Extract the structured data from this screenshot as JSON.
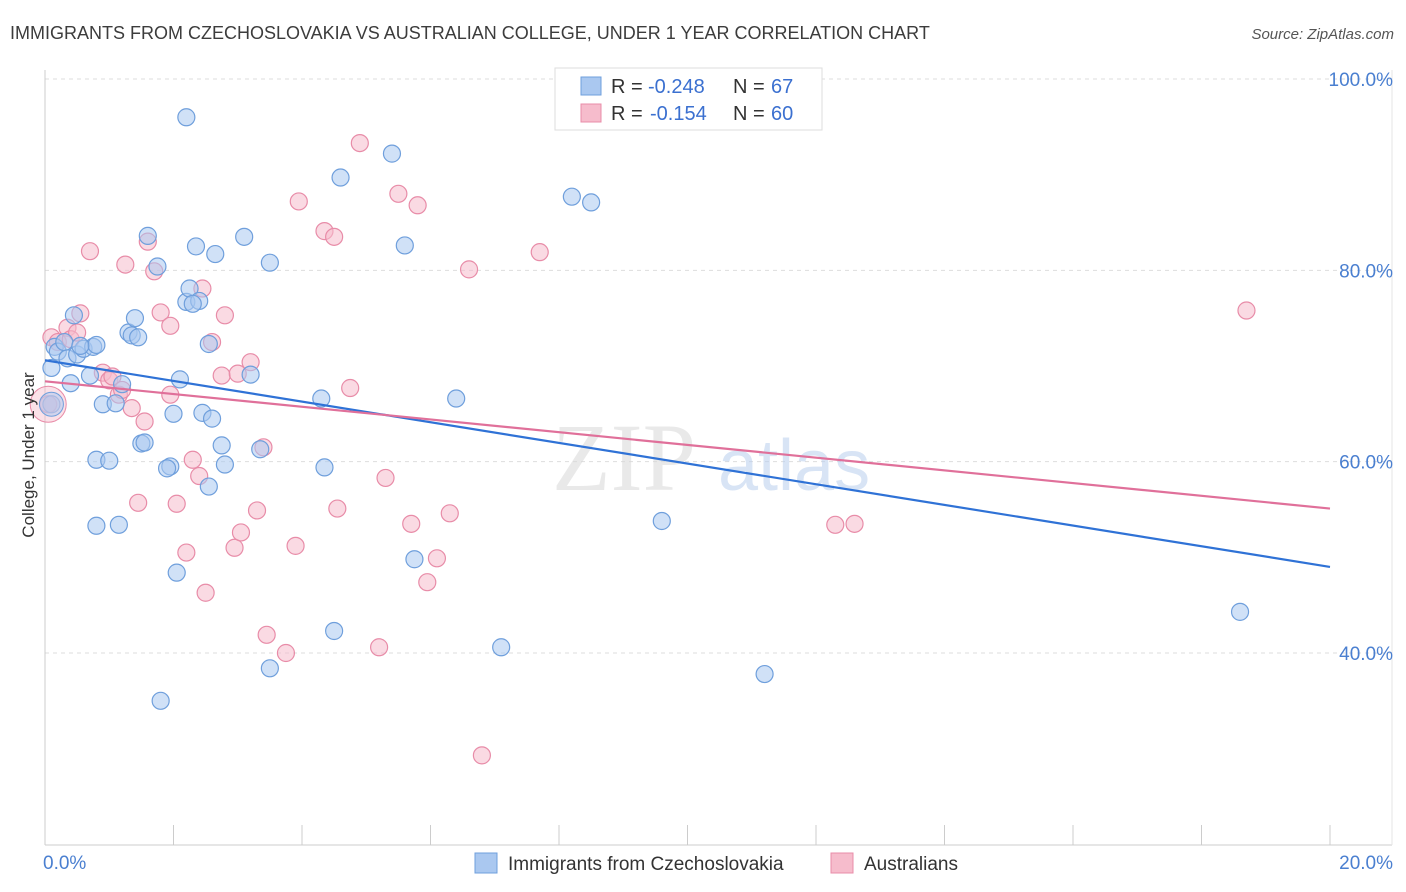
{
  "title": "IMMIGRANTS FROM CZECHOSLOVAKIA VS AUSTRALIAN COLLEGE, UNDER 1 YEAR CORRELATION CHART",
  "source": "Source: ZipAtlas.com",
  "watermark": {
    "zip": "ZIP",
    "atlas": "atlas"
  },
  "legend": {
    "r_label": "R =",
    "n_label": "N =",
    "rows": [
      {
        "r": "-0.248",
        "n": "67"
      },
      {
        "r": "-0.154",
        "n": "60"
      }
    ]
  },
  "colors": {
    "blue_fill": "#aac8f0",
    "blue_stroke": "#6f9fdc",
    "blue_line": "#2f72d6",
    "pink_fill": "#f6bccc",
    "pink_stroke": "#e88ca8",
    "pink_line": "#e0709a",
    "grid": "#dddddd",
    "tick_text": "#4a7fd0"
  },
  "chart_data": {
    "type": "scatter",
    "title": "IMMIGRANTS FROM CZECHOSLOVAKIA VS AUSTRALIAN COLLEGE, UNDER 1 YEAR CORRELATION CHART",
    "xlabel": "",
    "ylabel": "College, Under 1 year",
    "xlim": [
      0,
      20
    ],
    "ylim": [
      20,
      103
    ],
    "x_ticks": [
      "0.0%",
      "20.0%"
    ],
    "y_ticks": [
      {
        "value": 40,
        "label": "40.0%"
      },
      {
        "value": 60,
        "label": "60.0%"
      },
      {
        "value": 80,
        "label": "80.0%"
      },
      {
        "value": 100,
        "label": "100.0%"
      }
    ],
    "grid": true,
    "legend_position": "top-center",
    "series": [
      {
        "name": "Immigrants from Czechoslovakia",
        "color": "#aac8f0",
        "trend": {
          "x": [
            0,
            20
          ],
          "y": [
            70.6,
            49.0
          ]
        },
        "points": [
          [
            0.1,
            66.0
          ],
          [
            0.1,
            69.8
          ],
          [
            0.15,
            72.0
          ],
          [
            0.2,
            71.5
          ],
          [
            0.3,
            72.5
          ],
          [
            0.35,
            70.8
          ],
          [
            0.4,
            68.2
          ],
          [
            0.45,
            75.3
          ],
          [
            0.5,
            71.2
          ],
          [
            0.6,
            71.8
          ],
          [
            0.7,
            69.0
          ],
          [
            0.75,
            72.0
          ],
          [
            0.8,
            72.2
          ],
          [
            0.8,
            60.2
          ],
          [
            0.9,
            66.0
          ],
          [
            1.0,
            60.1
          ],
          [
            1.1,
            66.1
          ],
          [
            1.2,
            68.1
          ],
          [
            0.8,
            53.3
          ],
          [
            1.15,
            53.4
          ],
          [
            1.3,
            73.5
          ],
          [
            1.35,
            73.2
          ],
          [
            1.4,
            75.0
          ],
          [
            1.45,
            73.0
          ],
          [
            1.5,
            61.9
          ],
          [
            1.55,
            62.0
          ],
          [
            1.6,
            83.6
          ],
          [
            1.75,
            80.4
          ],
          [
            1.8,
            35.0
          ],
          [
            1.95,
            59.5
          ],
          [
            2.0,
            65.0
          ],
          [
            2.1,
            68.6
          ],
          [
            2.05,
            48.4
          ],
          [
            2.2,
            76.7
          ],
          [
            2.25,
            78.1
          ],
          [
            2.2,
            96.0
          ],
          [
            2.35,
            82.5
          ],
          [
            2.4,
            76.8
          ],
          [
            2.45,
            65.1
          ],
          [
            2.55,
            72.3
          ],
          [
            2.55,
            57.4
          ],
          [
            2.6,
            64.5
          ],
          [
            2.65,
            81.7
          ],
          [
            2.75,
            61.7
          ],
          [
            2.8,
            59.7
          ],
          [
            3.1,
            83.5
          ],
          [
            3.2,
            69.1
          ],
          [
            3.35,
            61.3
          ],
          [
            3.5,
            80.8
          ],
          [
            3.5,
            38.4
          ],
          [
            4.3,
            66.6
          ],
          [
            4.35,
            59.4
          ],
          [
            4.5,
            42.3
          ],
          [
            4.6,
            89.7
          ],
          [
            5.4,
            92.2
          ],
          [
            5.6,
            82.6
          ],
          [
            5.75,
            49.8
          ],
          [
            6.4,
            66.6
          ],
          [
            7.1,
            40.6
          ],
          [
            8.2,
            87.7
          ],
          [
            8.5,
            87.1
          ],
          [
            9.6,
            53.8
          ],
          [
            11.2,
            37.8
          ],
          [
            18.6,
            44.3
          ],
          [
            0.55,
            72.1
          ],
          [
            1.9,
            59.3
          ],
          [
            2.3,
            76.5
          ]
        ]
      },
      {
        "name": "Australians",
        "color": "#f6bccc",
        "trend": {
          "x": [
            0,
            20
          ],
          "y": [
            68.4,
            55.1
          ]
        },
        "points": [
          [
            0.05,
            66.0
          ],
          [
            0.1,
            73.0
          ],
          [
            0.2,
            72.5
          ],
          [
            0.35,
            74.0
          ],
          [
            0.4,
            72.8
          ],
          [
            0.5,
            73.5
          ],
          [
            0.55,
            75.5
          ],
          [
            0.7,
            82.0
          ],
          [
            0.9,
            69.3
          ],
          [
            1.0,
            68.5
          ],
          [
            1.05,
            68.9
          ],
          [
            1.15,
            67.0
          ],
          [
            1.2,
            67.5
          ],
          [
            1.25,
            80.6
          ],
          [
            1.35,
            65.6
          ],
          [
            1.45,
            55.7
          ],
          [
            1.55,
            64.2
          ],
          [
            1.6,
            83.0
          ],
          [
            1.7,
            79.9
          ],
          [
            1.8,
            75.6
          ],
          [
            1.95,
            67.0
          ],
          [
            1.95,
            74.2
          ],
          [
            2.05,
            55.6
          ],
          [
            2.2,
            50.5
          ],
          [
            2.3,
            60.2
          ],
          [
            2.4,
            58.5
          ],
          [
            2.45,
            78.1
          ],
          [
            2.5,
            46.3
          ],
          [
            2.6,
            72.5
          ],
          [
            2.75,
            69.0
          ],
          [
            2.8,
            75.3
          ],
          [
            2.95,
            51.0
          ],
          [
            3.0,
            69.2
          ],
          [
            3.05,
            52.6
          ],
          [
            3.2,
            70.4
          ],
          [
            3.3,
            54.9
          ],
          [
            3.4,
            61.5
          ],
          [
            3.45,
            41.9
          ],
          [
            3.75,
            40.0
          ],
          [
            3.9,
            51.2
          ],
          [
            3.95,
            87.2
          ],
          [
            4.35,
            84.1
          ],
          [
            4.5,
            83.5
          ],
          [
            4.55,
            55.1
          ],
          [
            4.75,
            67.7
          ],
          [
            4.9,
            93.3
          ],
          [
            5.2,
            40.6
          ],
          [
            5.3,
            58.3
          ],
          [
            5.5,
            88.0
          ],
          [
            5.7,
            53.5
          ],
          [
            5.8,
            86.8
          ],
          [
            5.95,
            47.4
          ],
          [
            6.1,
            49.9
          ],
          [
            6.3,
            54.6
          ],
          [
            6.6,
            80.1
          ],
          [
            6.8,
            29.3
          ],
          [
            7.7,
            81.9
          ],
          [
            12.3,
            53.4
          ],
          [
            12.6,
            53.5
          ],
          [
            18.7,
            75.8
          ]
        ]
      }
    ]
  },
  "bottom_legend": [
    {
      "label": "Immigrants from Czechoslovakia"
    },
    {
      "label": "Australians"
    }
  ]
}
